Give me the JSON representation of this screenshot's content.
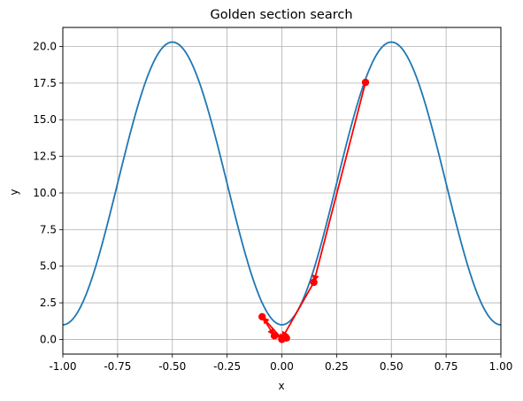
{
  "chart_data": {
    "type": "line",
    "title": "Golden section search",
    "xlabel": "x",
    "ylabel": "y",
    "xlim": [
      -1.0,
      1.0
    ],
    "ylim": [
      -1.0,
      21.3
    ],
    "grid": true,
    "x_ticks": [
      "-1.00",
      "-0.75",
      "-0.50",
      "-0.25",
      "0.00",
      "0.25",
      "0.50",
      "0.75",
      "1.00"
    ],
    "y_ticks": [
      "0.0",
      "2.5",
      "5.0",
      "7.5",
      "10.0",
      "12.5",
      "15.0",
      "17.5",
      "20.0"
    ],
    "series": [
      {
        "kind": "curve",
        "color": "#1f77b4",
        "function": "1 + 19.3 * sin(pi * x)^2",
        "x_range": [
          -1.0,
          1.0
        ]
      },
      {
        "kind": "search_path",
        "color": "#ff0000",
        "marker": "circle",
        "points": [
          {
            "x": 0.382,
            "y": 17.55
          },
          {
            "x": 0.146,
            "y": 3.9
          },
          {
            "x": 0.0,
            "y": 0.05
          },
          {
            "x": -0.09,
            "y": 1.55
          },
          {
            "x": -0.034,
            "y": 0.25
          },
          {
            "x": 0.021,
            "y": 0.1
          },
          {
            "x": 0.0,
            "y": 0.0
          }
        ]
      }
    ]
  }
}
